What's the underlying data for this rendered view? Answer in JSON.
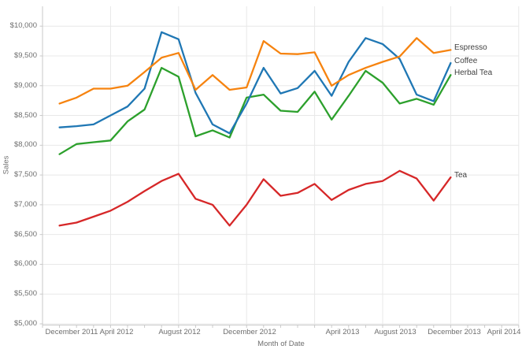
{
  "chart_data": {
    "type": "line",
    "title": "",
    "xlabel": "Month of Date",
    "ylabel": "Sales",
    "ylim": [
      5000,
      10000
    ],
    "ytick_step": 500,
    "grid": true,
    "legend_position": "line-end-labels",
    "x": [
      "Jan 2012",
      "Feb 2012",
      "Mar 2012",
      "Apr 2012",
      "May 2012",
      "Jun 2012",
      "Jul 2012",
      "Aug 2012",
      "Sep 2012",
      "Oct 2012",
      "Nov 2012",
      "Dec 2012",
      "Jan 2013",
      "Feb 2013",
      "Mar 2013",
      "Apr 2013",
      "May 2013",
      "Jun 2013",
      "Jul 2013",
      "Aug 2013",
      "Sep 2013",
      "Oct 2013",
      "Nov 2013",
      "Dec 2013"
    ],
    "series": [
      {
        "name": "Espresso",
        "color": "#f6830f",
        "values": [
          8700,
          8800,
          8950,
          8950,
          9000,
          9230,
          9470,
          9550,
          8930,
          9180,
          8930,
          8970,
          9750,
          9540,
          9530,
          9560,
          9000,
          9180,
          9300,
          9400,
          9490,
          9800,
          9550,
          9600
        ]
      },
      {
        "name": "Coffee",
        "color": "#1f77b4",
        "values": [
          8300,
          8320,
          8350,
          8500,
          8650,
          8950,
          9900,
          9780,
          8880,
          8350,
          8200,
          8700,
          9300,
          8870,
          8960,
          9250,
          8830,
          9400,
          9800,
          9700,
          9450,
          8850,
          8740,
          9380
        ]
      },
      {
        "name": "Herbal Tea",
        "color": "#2ca02c",
        "values": [
          7850,
          8020,
          8050,
          8080,
          8400,
          8600,
          9300,
          9150,
          8150,
          8250,
          8130,
          8800,
          8850,
          8580,
          8560,
          8900,
          8430,
          8830,
          9250,
          9050,
          8700,
          8780,
          8680,
          9180
        ]
      },
      {
        "name": "Tea",
        "color": "#d62728",
        "values": [
          6650,
          6700,
          6800,
          6900,
          7050,
          7230,
          7400,
          7520,
          7100,
          7000,
          6650,
          7000,
          7430,
          7150,
          7200,
          7350,
          7080,
          7250,
          7350,
          7400,
          7570,
          7440,
          7070,
          7460
        ]
      }
    ]
  },
  "y_axis": {
    "title": "Sales",
    "tick_labels": [
      "$10,000",
      "$9,500",
      "$9,000",
      "$8,500",
      "$8,000",
      "$7,500",
      "$7,000",
      "$6,500",
      "$6,000",
      "$5,500",
      "$5,000"
    ]
  },
  "x_axis": {
    "title": "Month of Date",
    "tick_labels": [
      "December 2011",
      "April 2012",
      "August 2012",
      "December 2012",
      "April 2013",
      "August 2013",
      "December 2013",
      "April 2014"
    ]
  },
  "legend": {
    "labels": [
      "Espresso",
      "Coffee",
      "Herbal Tea",
      "Tea"
    ]
  },
  "colors": {
    "gridline": "#e8e8e8",
    "axis_line": "#c9c9c9",
    "tick_text": "#6e6e6e",
    "label_text": "#3f3f3f",
    "background": "#ffffff"
  }
}
